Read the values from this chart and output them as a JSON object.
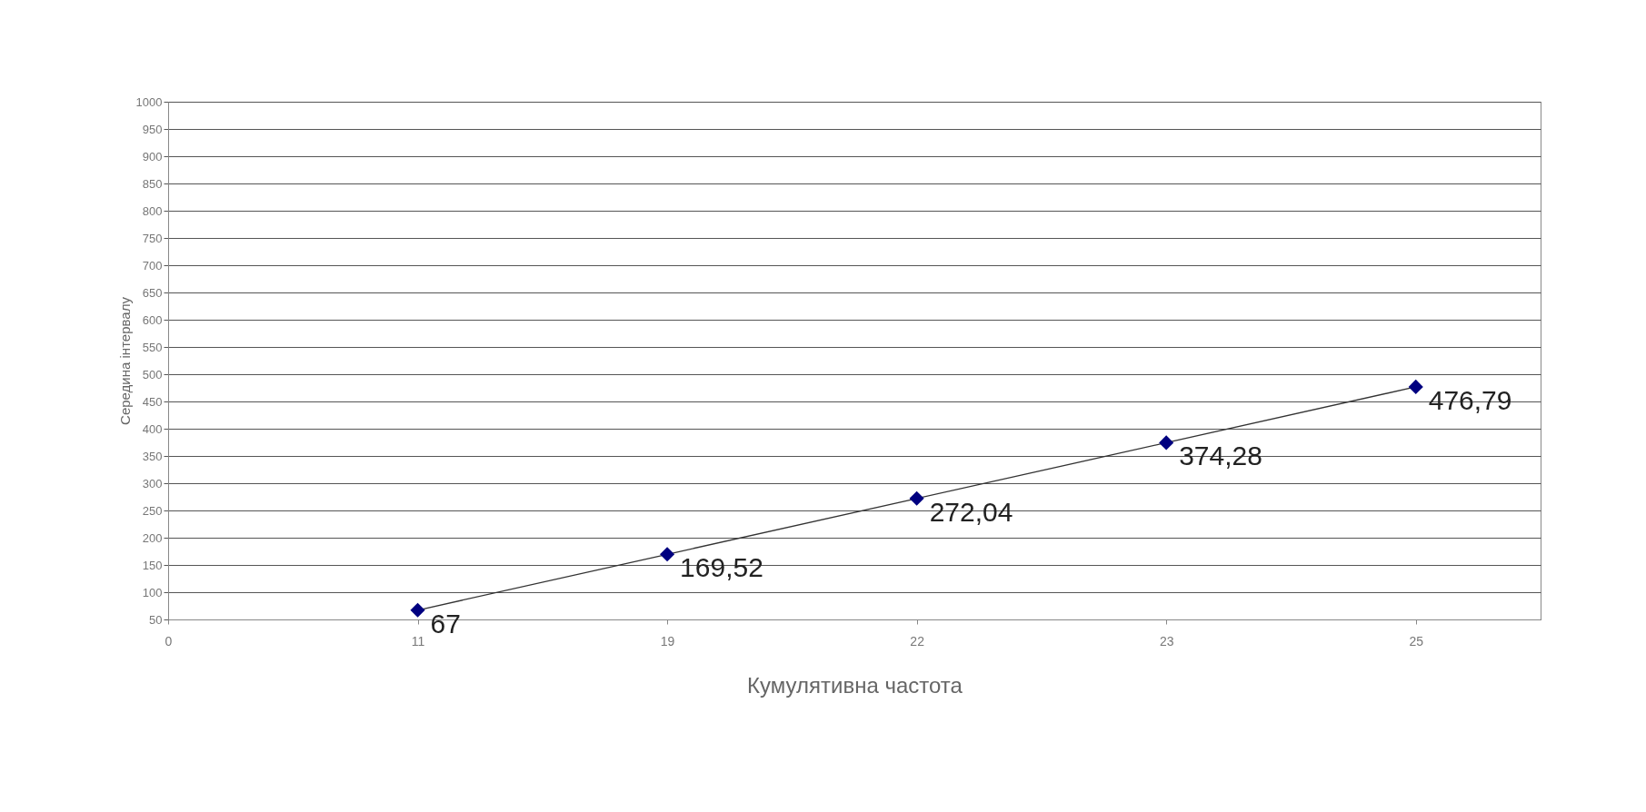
{
  "chart_data": {
    "type": "line",
    "xlabel": "Кумулятивна частота",
    "ylabel": "Середина інтервалу",
    "categories": [
      "0",
      "11",
      "19",
      "22",
      "23",
      "25"
    ],
    "series": [
      {
        "color": "#000080",
        "values": [
          null,
          67,
          169.52,
          272.04,
          374.28,
          476.79
        ],
        "value_labels": [
          null,
          "67",
          "169,52",
          "272,04",
          "374,28",
          "476,79"
        ]
      }
    ],
    "ylim": [
      50,
      1000
    ],
    "yticks": [
      50,
      100,
      150,
      200,
      250,
      300,
      350,
      400,
      450,
      500,
      550,
      600,
      650,
      700,
      750,
      800,
      850,
      900,
      950,
      1000
    ],
    "grid": "y",
    "marker": "diamond",
    "line_style": "solid"
  }
}
